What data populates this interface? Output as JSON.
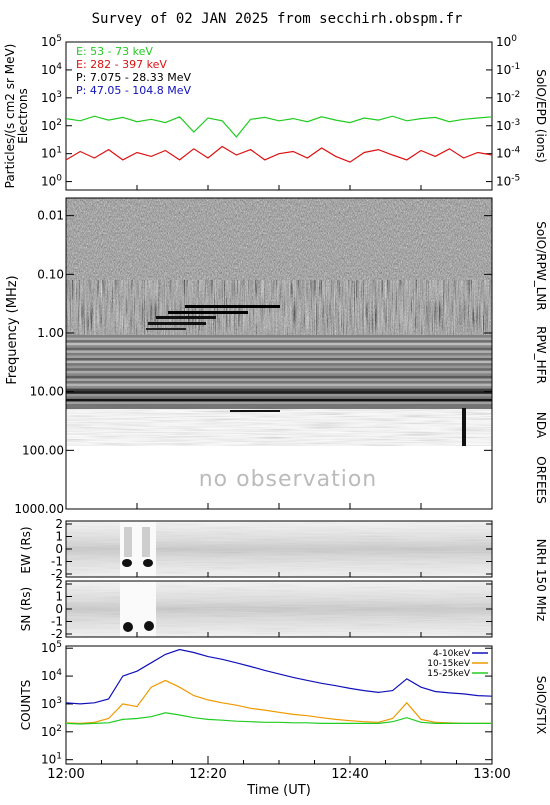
{
  "title": "Survey of 02 JAN 2025 from secchirh.obspm.fr",
  "x_axis": {
    "label": "Time (UT)",
    "range": [
      "12:00",
      "13:00"
    ],
    "ticks": [
      "12:00",
      "12:20",
      "12:40",
      "13:00"
    ]
  },
  "no_observation_text": "no observation",
  "colors": {
    "green": "#22cc22",
    "red": "#dd1111",
    "black": "#000000",
    "blue": "#1111bb",
    "orange": "#ee9900"
  },
  "chart_data": [
    {
      "type": "line",
      "panel": "SolO/EPD (ions)",
      "right_label": "SolO/EPD (ions)",
      "ylabel": "Particles/(s cm2 sr MeV)",
      "ylabel_sub": "Electrons",
      "yscale": "log",
      "ylim": [
        0.5,
        100000
      ],
      "y_ticks": [
        "10^0",
        "10^1",
        "10^2",
        "10^3",
        "10^4",
        "10^5"
      ],
      "y2_ticks": [
        "10^-5",
        "10^-4",
        "10^-3",
        "10^-2",
        "10^-1",
        "10^0"
      ],
      "legend": [
        {
          "text": "E: 53 - 73 keV",
          "color": "#22cc22"
        },
        {
          "text": "E: 282 - 397 keV",
          "color": "#dd1111"
        },
        {
          "text": "P: 7.075 - 28.33 MeV",
          "color": "#000000"
        },
        {
          "text": "P: 47.05 - 104.8 MeV",
          "color": "#1111bb"
        }
      ],
      "series": [
        {
          "name": "E: 53 - 73 keV",
          "x_minutes": [
            0,
            2,
            4,
            6,
            8,
            10,
            12,
            14,
            16,
            18,
            20,
            22,
            24,
            26,
            28,
            30,
            32,
            34,
            36,
            38,
            40,
            42,
            44,
            46,
            48,
            50,
            52,
            54,
            56,
            58,
            60
          ],
          "values": [
            180,
            150,
            220,
            160,
            200,
            140,
            170,
            130,
            210,
            60,
            190,
            150,
            40,
            170,
            200,
            150,
            180,
            140,
            210,
            160,
            130,
            190,
            160,
            220,
            150,
            180,
            200,
            140,
            170,
            190,
            210
          ]
        },
        {
          "name": "E: 282 - 397 keV",
          "x_minutes": [
            0,
            2,
            4,
            6,
            8,
            10,
            12,
            14,
            16,
            18,
            20,
            22,
            24,
            26,
            28,
            30,
            32,
            34,
            36,
            38,
            40,
            42,
            44,
            46,
            48,
            50,
            52,
            54,
            56,
            58,
            60
          ],
          "values": [
            6,
            12,
            7,
            14,
            6,
            11,
            8,
            13,
            6,
            15,
            7,
            18,
            9,
            14,
            6,
            10,
            12,
            7,
            16,
            8,
            5,
            11,
            14,
            9,
            6,
            13,
            8,
            15,
            7,
            11,
            9
          ]
        }
      ]
    },
    {
      "type": "heatmap",
      "panel": "SolO/RPW_LNR",
      "right_label": "SoIO/RPW_LNR",
      "ylabel": "Frequency (MHz)",
      "y_ticks": [
        "0.01",
        "0.10",
        "1.00",
        "10.00",
        "100.00",
        "1000.00"
      ]
    },
    {
      "type": "heatmap",
      "panel": "RPW_HFR",
      "right_label": "RPW_HFR"
    },
    {
      "type": "heatmap",
      "panel": "NDA",
      "right_label": "NDA"
    },
    {
      "type": "heatmap",
      "panel": "ORFEES",
      "right_label": "ORFEES"
    },
    {
      "type": "heatmap",
      "panel": "NRH 150 MHz EW",
      "ylabel": "EW (Rs)",
      "ylim": [
        -2,
        2
      ],
      "y_ticks": [
        "2",
        "1",
        "0",
        "-1",
        "-2"
      ]
    },
    {
      "type": "heatmap",
      "panel": "NRH 150 MHz SN",
      "ylabel": "SN (Rs)",
      "ylim": [
        -2,
        2
      ],
      "y_ticks": [
        "2",
        "1",
        "0",
        "-1",
        "-2"
      ],
      "right_label": "NRH 150 MHz"
    },
    {
      "type": "line",
      "panel": "SolO/STIX",
      "right_label": "SolO/STIX",
      "ylabel": "COUNTS",
      "yscale": "log",
      "ylim": [
        10,
        100000
      ],
      "y_ticks": [
        "10^1",
        "10^2",
        "10^3",
        "10^4",
        "10^5"
      ],
      "series": [
        {
          "name": "4-10keV",
          "color": "#1111bb",
          "x_minutes": [
            0,
            2,
            4,
            6,
            8,
            10,
            12,
            14,
            16,
            18,
            20,
            22,
            24,
            26,
            28,
            30,
            32,
            34,
            36,
            38,
            40,
            42,
            44,
            46,
            48,
            50,
            52,
            54,
            56,
            58,
            60
          ],
          "values": [
            1100,
            1000,
            1100,
            1500,
            10000,
            15000,
            30000,
            60000,
            90000,
            70000,
            50000,
            40000,
            30000,
            22000,
            16000,
            12000,
            9000,
            7000,
            5500,
            4500,
            3600,
            3000,
            2600,
            3000,
            8000,
            4000,
            2800,
            2500,
            2300,
            2000,
            1900
          ]
        },
        {
          "name": "10-15keV",
          "color": "#ee9900",
          "x_minutes": [
            0,
            2,
            4,
            6,
            8,
            10,
            12,
            14,
            16,
            18,
            20,
            22,
            24,
            26,
            28,
            30,
            32,
            34,
            36,
            38,
            40,
            42,
            44,
            46,
            48,
            50,
            52,
            54,
            56,
            58,
            60
          ],
          "values": [
            210,
            200,
            220,
            300,
            1000,
            800,
            4000,
            7000,
            4000,
            2000,
            1400,
            1100,
            900,
            700,
            600,
            500,
            420,
            380,
            320,
            280,
            250,
            230,
            220,
            300,
            1100,
            280,
            220,
            210,
            200,
            200,
            200
          ]
        },
        {
          "name": "15-25keV",
          "color": "#22cc22",
          "x_minutes": [
            0,
            2,
            4,
            6,
            8,
            10,
            12,
            14,
            16,
            18,
            20,
            22,
            24,
            26,
            28,
            30,
            32,
            34,
            36,
            38,
            40,
            42,
            44,
            46,
            48,
            50,
            52,
            54,
            56,
            58,
            60
          ],
          "values": [
            200,
            190,
            200,
            210,
            280,
            300,
            350,
            480,
            400,
            320,
            280,
            260,
            240,
            230,
            220,
            220,
            210,
            210,
            200,
            200,
            200,
            200,
            200,
            230,
            320,
            220,
            200,
            200,
            200,
            200,
            200
          ]
        }
      ]
    }
  ]
}
